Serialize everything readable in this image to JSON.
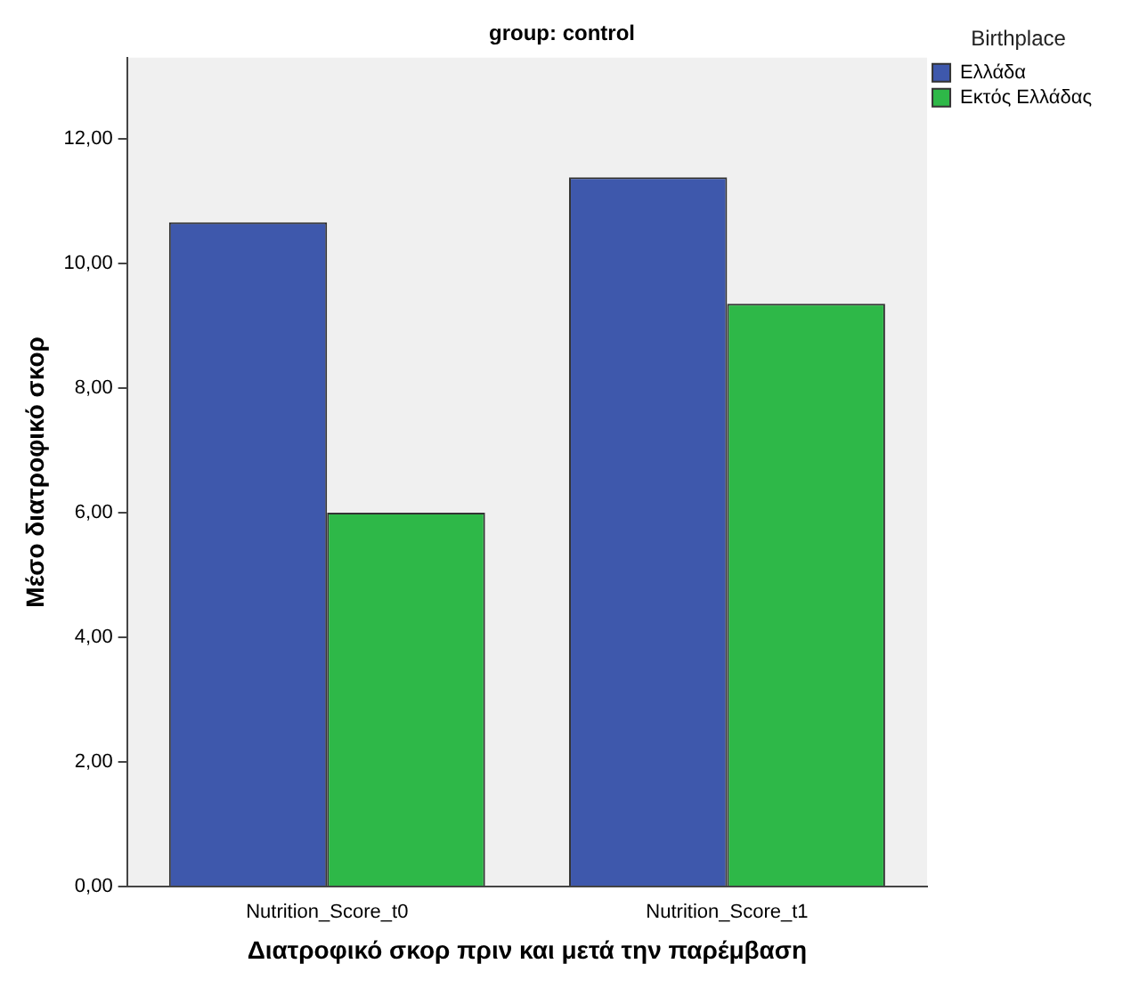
{
  "chart_data": {
    "type": "bar",
    "title": "group: control",
    "xlabel": "Διατροφικό σκορ πριν και μετά την παρέμβαση",
    "ylabel": "Μέσο διατροφικό σκορ",
    "legend_title": "Birthplace",
    "categories": [
      "Nutrition_Score_t0",
      "Nutrition_Score_t1"
    ],
    "series": [
      {
        "name": "Ελλάδα",
        "color": "#3e58ac",
        "values": [
          10.66,
          11.38
        ]
      },
      {
        "name": "Εκτός Ελλάδας",
        "color": "#2eb848",
        "values": [
          6.0,
          9.35
        ]
      }
    ],
    "ylim": [
      0,
      13.3
    ],
    "yticks": [
      {
        "value": 0,
        "label": "0,00"
      },
      {
        "value": 2,
        "label": "2,00"
      },
      {
        "value": 4,
        "label": "4,00"
      },
      {
        "value": 6,
        "label": "6,00"
      },
      {
        "value": 8,
        "label": "8,00"
      },
      {
        "value": 10,
        "label": "10,00"
      },
      {
        "value": 12,
        "label": "12,00"
      }
    ],
    "grid": false,
    "legend": "top right"
  }
}
